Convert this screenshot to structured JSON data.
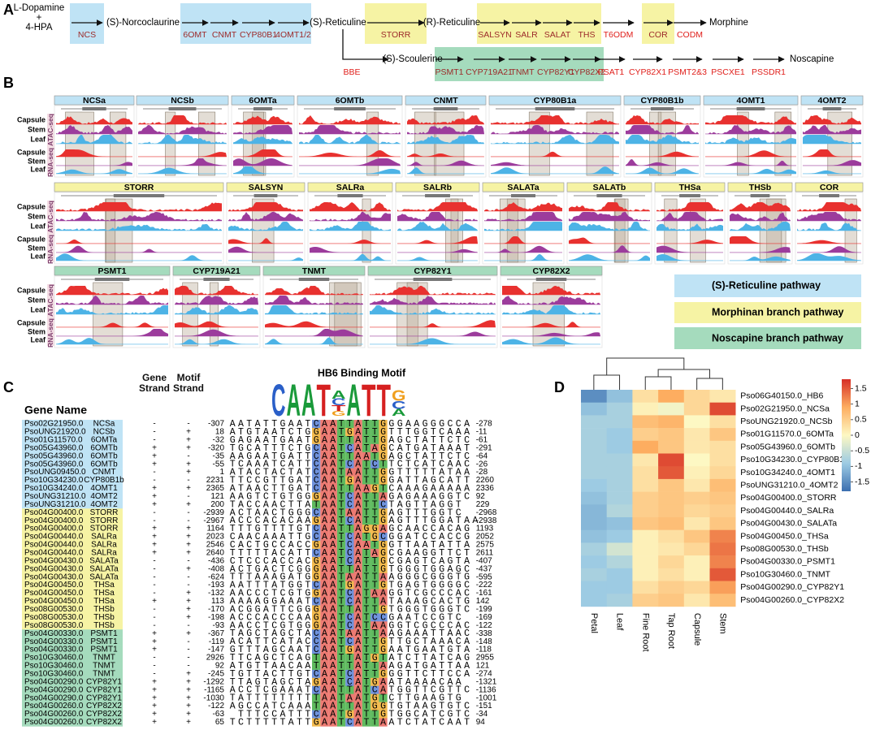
{
  "panel_labels": [
    "A",
    "B",
    "C",
    "D"
  ],
  "pathway": {
    "start": [
      "L-Dopamine",
      "+",
      "4-HPA"
    ],
    "compounds": [
      "(S)-Norcoclaurine",
      "(S)-Reticuline",
      "(R)-Reticuline",
      "Morphine",
      "(S)-Scoulerine",
      "Noscapine"
    ],
    "enzymes": [
      "NCS",
      "6OMT",
      "CNMT",
      "CYP80B1",
      "4OMT1/2",
      "STORR",
      "SALSYN",
      "SALR",
      "SALAT",
      "THS",
      "T6ODM",
      "COR",
      "CODM",
      "BBE",
      "PSMT1",
      "CYP719A21",
      "TNMT",
      "CYP82Y1",
      "CYP82X2",
      "PSAT1",
      "CYP82X1",
      "PSMT2&3",
      "PSCXE1",
      "PSSDR1"
    ]
  },
  "tracks": {
    "blocks": [
      [
        "NCSa",
        "NCSb",
        "6OMTa",
        "6OMTb",
        "CNMT",
        "CYP80B1a",
        "CYP80B1b",
        "4OMT1",
        "4OMT2"
      ],
      [
        "STORR",
        "SALSYN",
        "SALRa",
        "SALRb",
        "SALATa",
        "SALATb",
        "THSa",
        "THSb",
        "COR"
      ],
      [
        "PSMT1",
        "CYP719A21",
        "TNMT",
        "CYP82Y1",
        "CYP82X2"
      ]
    ],
    "tissues": [
      "Capsule",
      "Stem",
      "Leaf"
    ],
    "assays": [
      "ATAC-seq",
      "RNA-seq"
    ],
    "legend": [
      "(S)-Reticuline pathway",
      "Morphinan branch pathway",
      "Noscapine branch pathway"
    ]
  },
  "motif_table": {
    "title": "HB6 Binding Motif",
    "headers": [
      "Gene Name",
      "Gene Strand",
      "Motif Strand"
    ],
    "logo": [
      "C",
      "A",
      "A",
      "T",
      "ACTG",
      "A",
      "T",
      "T",
      "GCA"
    ],
    "rows": [
      [
        "Pso02G21950.0",
        "NCSa",
        "-",
        "-",
        -307,
        "AATATTGAAT",
        "CAATTATTG",
        "GGAAGGGCCA",
        -278
      ],
      [
        "PsoUNG21920.0",
        "NCSb",
        "-",
        "+",
        18,
        "ATGTAATCTG",
        "GAATGATTG",
        "TTTGGTCAAA",
        -11
      ],
      [
        "Pso01G11570.0",
        "6OMTa",
        "-",
        "+",
        -32,
        "GAGAATGAAT",
        "GAATTATTG",
        "AGCTATTCTC",
        -61
      ],
      [
        "Pso05G43960.0",
        "6OMTb",
        "+",
        "+",
        -320,
        "TGCATTTCTG",
        "CAATCATAG",
        "CATGATAAAT",
        -291
      ],
      [
        "Pso05G43960.0",
        "6OMTb",
        "+",
        "-",
        -35,
        "AAGAATGATT",
        "CAATTAATG",
        "AGCTATTCTC",
        -64
      ],
      [
        "Pso05G43960.0",
        "6OMTb",
        "+",
        "+",
        -55,
        "TCAAATCATT",
        "CAATCATCT",
        "TCTCATCAAC",
        -26
      ],
      [
        "PsoUNG09450.0",
        "CNMT",
        "-",
        "+",
        1,
        "ATACTACTAT",
        "CAATAATTG",
        "GTTTTTATAA",
        -28
      ],
      [
        "Pso10G34230.0",
        "CYP80B1b",
        "-",
        "-",
        2231,
        "TTCCGTTGAT",
        "CAATGATTG",
        "GATTAGCATT",
        2260
      ],
      [
        "Pso10G34240.0",
        "4OMT1",
        "+",
        "+",
        2365,
        "ATAACTTGAT",
        "CAATTAAGT",
        "CAAAGAAAAA",
        2336
      ],
      [
        "PsoUNG31210.0",
        "4OMT2",
        "+",
        "-",
        121,
        "AAGTCTGTGG",
        "GAATCATTA",
        "GAGAAAGGTC",
        92
      ],
      [
        "PsoUNG31210.0",
        "4OMT2",
        "+",
        "+",
        200,
        "TACCAACTTA",
        "TAATCATTC",
        "TAGTTAGGT",
        229
      ],
      [
        "Pso04G00400.0",
        "STORR",
        "-",
        "-",
        -2939,
        "ACTAACTGGG",
        "CAATAATTG",
        "AGTTTGGTC",
        -2968
      ],
      [
        "Pso04G00400.0",
        "STORR",
        "-",
        "-",
        -2967,
        "ACCCACACAA",
        "GAATCATTG",
        "AGTTTGGATAA",
        -2938
      ],
      [
        "Pso04G00400.0",
        "STORR",
        "+",
        "+",
        1164,
        "TTTGTTTTGT",
        "CAATTAGGA",
        "GCAACCACAG",
        1193
      ],
      [
        "Pso04G00440.0",
        "SALRa",
        "+",
        "+",
        2023,
        "CAACAAATTG",
        "CAATCATGC",
        "GGATCCACCG",
        2052
      ],
      [
        "Pso04G00440.0",
        "SALRa",
        "+",
        "+",
        2546,
        "CACTGCCACC",
        "GAATCAATG",
        "GTTAATATTA",
        2575
      ],
      [
        "Pso04G00440.0",
        "SALRa",
        "+",
        "+",
        2640,
        "TTTTTACATT",
        "CAATCATAG",
        "CGAAGGTTCT",
        2611
      ],
      [
        "Pso04G00430.0",
        "SALATa",
        "-",
        "-",
        -436,
        "CTCCCACCAC",
        "GAATCATTG",
        "CGAGTCAGTA",
        -407
      ],
      [
        "Pso04G00430.0",
        "SALATa",
        "-",
        "+",
        -408,
        "ACTGACTCGG",
        "GAATTATTG",
        "TGGGTGGAGC",
        -437
      ],
      [
        "Pso04G00430.0",
        "SALATa",
        "-",
        "-",
        -624,
        "TTTAAAGATG",
        "GAATAATTA",
        "AGGGCGGGTG",
        -595
      ],
      [
        "Pso04G00450.0",
        "THSa",
        "-",
        "-",
        -193,
        "AATTTATGGT",
        "CAATGATTG",
        "TGAGTGGGGC",
        -222
      ],
      [
        "Pso04G00450.0",
        "THSa",
        "-",
        "+",
        -132,
        "AACCCTCGTG",
        "GAATCATAA",
        "GGTCGCCCAC",
        -161
      ],
      [
        "Pso04G00450.0",
        "THSa",
        "+",
        "+",
        113,
        "AAAAGGAAAT",
        "CAATCATTA",
        "TAAAGCACTG",
        142
      ],
      [
        "Pso08G00530.0",
        "THSb",
        "-",
        "+",
        -170,
        "ACGGATTCGG",
        "GAATTATTG",
        "TGGGTGGGTC",
        -199
      ],
      [
        "Pso08G00530.0",
        "THSb",
        "-",
        "+",
        -198,
        "ACCCACCCAA",
        "GAATCATCC",
        "GAATCCGTC",
        -169
      ],
      [
        "Pso08G00530.0",
        "THSb",
        "-",
        "-",
        -93,
        "AACCTCGTGG",
        "GAATCATAA",
        "GGTCGCCCAC",
        -122
      ],
      [
        "Pso04G00330.0",
        "PSMT1",
        "+",
        "+",
        -367,
        "TAGCTAGCTA",
        "CAATAATTA",
        "AGAAATTAAC",
        -338
      ],
      [
        "Pso04G00330.0",
        "PSMT1",
        "+",
        "-",
        -119,
        "ACATTCATAC",
        "CAATCATTG",
        "TTGCTAAACA",
        -148
      ],
      [
        "Pso04G00330.0",
        "PSMT1",
        "+",
        "-",
        -147,
        "GTTTAGCAAT",
        "CAATGATTG",
        "AATGAATGTA",
        -118
      ],
      [
        "Pso10G30460.0",
        "TNMT",
        "-",
        "-",
        2926,
        "TTCAGCTCAG",
        "TAATTATGT",
        "ATCTTATCAG",
        2955
      ],
      [
        "Pso10G30460.0",
        "TNMT",
        "-",
        "-",
        92,
        "ATGTTAACAA",
        "TAATTATTA",
        "AGATGATTAA",
        121
      ],
      [
        "Pso10G30460.0",
        "TNMT",
        "-",
        "+",
        -245,
        "TGTTACTTGT",
        "CAATCATTG",
        "GGTTCTTCCA",
        -274
      ],
      [
        "Pso04G00290.0",
        "CYP82Y1",
        "+",
        "+",
        -1292,
        "TTAGTAGCTA",
        "GAATCATGA",
        "ATAAAACAA",
        -1321
      ],
      [
        "Pso04G00290.0",
        "CYP82Y1",
        "+",
        "+",
        -1165,
        "ACCTCGAAAT",
        "CAATTATCA",
        "TGGTTCGTTC",
        -1136
      ],
      [
        "Pso04G00290.0",
        "CYP82Y1",
        "+",
        "+",
        -1030,
        "TATTTTTTTT",
        "TAATAATGT",
        "CTTGAAGTG",
        -1001
      ],
      [
        "Pso04G00260.0",
        "CYP82X2",
        "+",
        "+",
        -122,
        "AGCCATCAAA",
        "TAATTATGG",
        "TGTAAGTGTC",
        -151
      ],
      [
        "Pso04G00260.0",
        "CYP82X2",
        "+",
        "+",
        -63,
        "TTTCCATTT",
        "CAATGATTG",
        "TGGCATCGTC",
        -34
      ],
      [
        "Pso04G00260.0",
        "CYP82X2",
        "+",
        "+",
        65,
        "TCTTTTTATT",
        "GAATCATTA",
        "ATCTATCAAT",
        94
      ]
    ]
  },
  "heatmap": {
    "columns": [
      "Petal",
      "Leaf",
      "Fine Root",
      "Tap Root",
      "Capsule",
      "Stem"
    ],
    "rows": [
      "Pso06G40150.0_HB6",
      "Pso02G21950.0_NCSa",
      "PsoUNG21920.0_NCSb",
      "Pso01G11570.0_6OMTa",
      "Pso05G43960.0_6OMTb",
      "Pso10G34230.0_CYP80B1b",
      "Pso10G34240.0_4OMT1",
      "PsoUNG31210.0_4OMT2",
      "Pso04G00400.0_STORR",
      "Pso04G00440.0_SALRa",
      "Pso04G00430.0_SALATa",
      "Pso04G00450.0_THSa",
      "Pso08G00530.0_THSb",
      "Pso04G00330.0_PSMT1",
      "Pso10G30460.0_TNMT",
      "Pso04G00290.0_CYP82Y1",
      "Pso04G00260.0_CYP82X2"
    ],
    "values": [
      [
        -1.5,
        -1.0,
        0.3,
        0.9,
        0.4,
        0.2
      ],
      [
        -1.0,
        -0.8,
        0.1,
        -0.1,
        0.4,
        1.6
      ],
      [
        -0.8,
        -0.8,
        0.7,
        0.8,
        0.0,
        0.3
      ],
      [
        -0.8,
        -0.9,
        0.5,
        0.6,
        0.2,
        0.6
      ],
      [
        -0.8,
        -0.9,
        0.9,
        0.6,
        0.2,
        0.3
      ],
      [
        -0.8,
        -0.8,
        0.2,
        1.6,
        0.0,
        0.3
      ],
      [
        -0.8,
        -0.8,
        0.3,
        1.5,
        0.1,
        0.4
      ],
      [
        -0.9,
        -0.8,
        0.3,
        0.6,
        0.2,
        0.7
      ],
      [
        -1.0,
        -0.8,
        0.5,
        0.6,
        0.5,
        0.6
      ],
      [
        -1.1,
        -0.7,
        0.5,
        0.6,
        0.4,
        0.5
      ],
      [
        -1.1,
        -1.0,
        0.6,
        0.7,
        0.2,
        0.6
      ],
      [
        -1.0,
        -0.9,
        0.1,
        0.3,
        0.6,
        1.2
      ],
      [
        -0.8,
        -0.4,
        0.1,
        0.2,
        0.4,
        1.3
      ],
      [
        -0.9,
        -0.7,
        0.1,
        0.4,
        0.1,
        1.2
      ],
      [
        -0.8,
        -0.9,
        0.1,
        0.3,
        0.1,
        1.5
      ],
      [
        -0.9,
        -0.9,
        0.3,
        0.5,
        0.4,
        1.0
      ],
      [
        -0.9,
        -0.8,
        0.5,
        0.6,
        0.2,
        0.7
      ]
    ],
    "clim": [
      -1.8,
      1.8
    ],
    "ticks": [
      1.5,
      1,
      0.5,
      0,
      -0.5,
      -1,
      -1.5
    ]
  }
}
